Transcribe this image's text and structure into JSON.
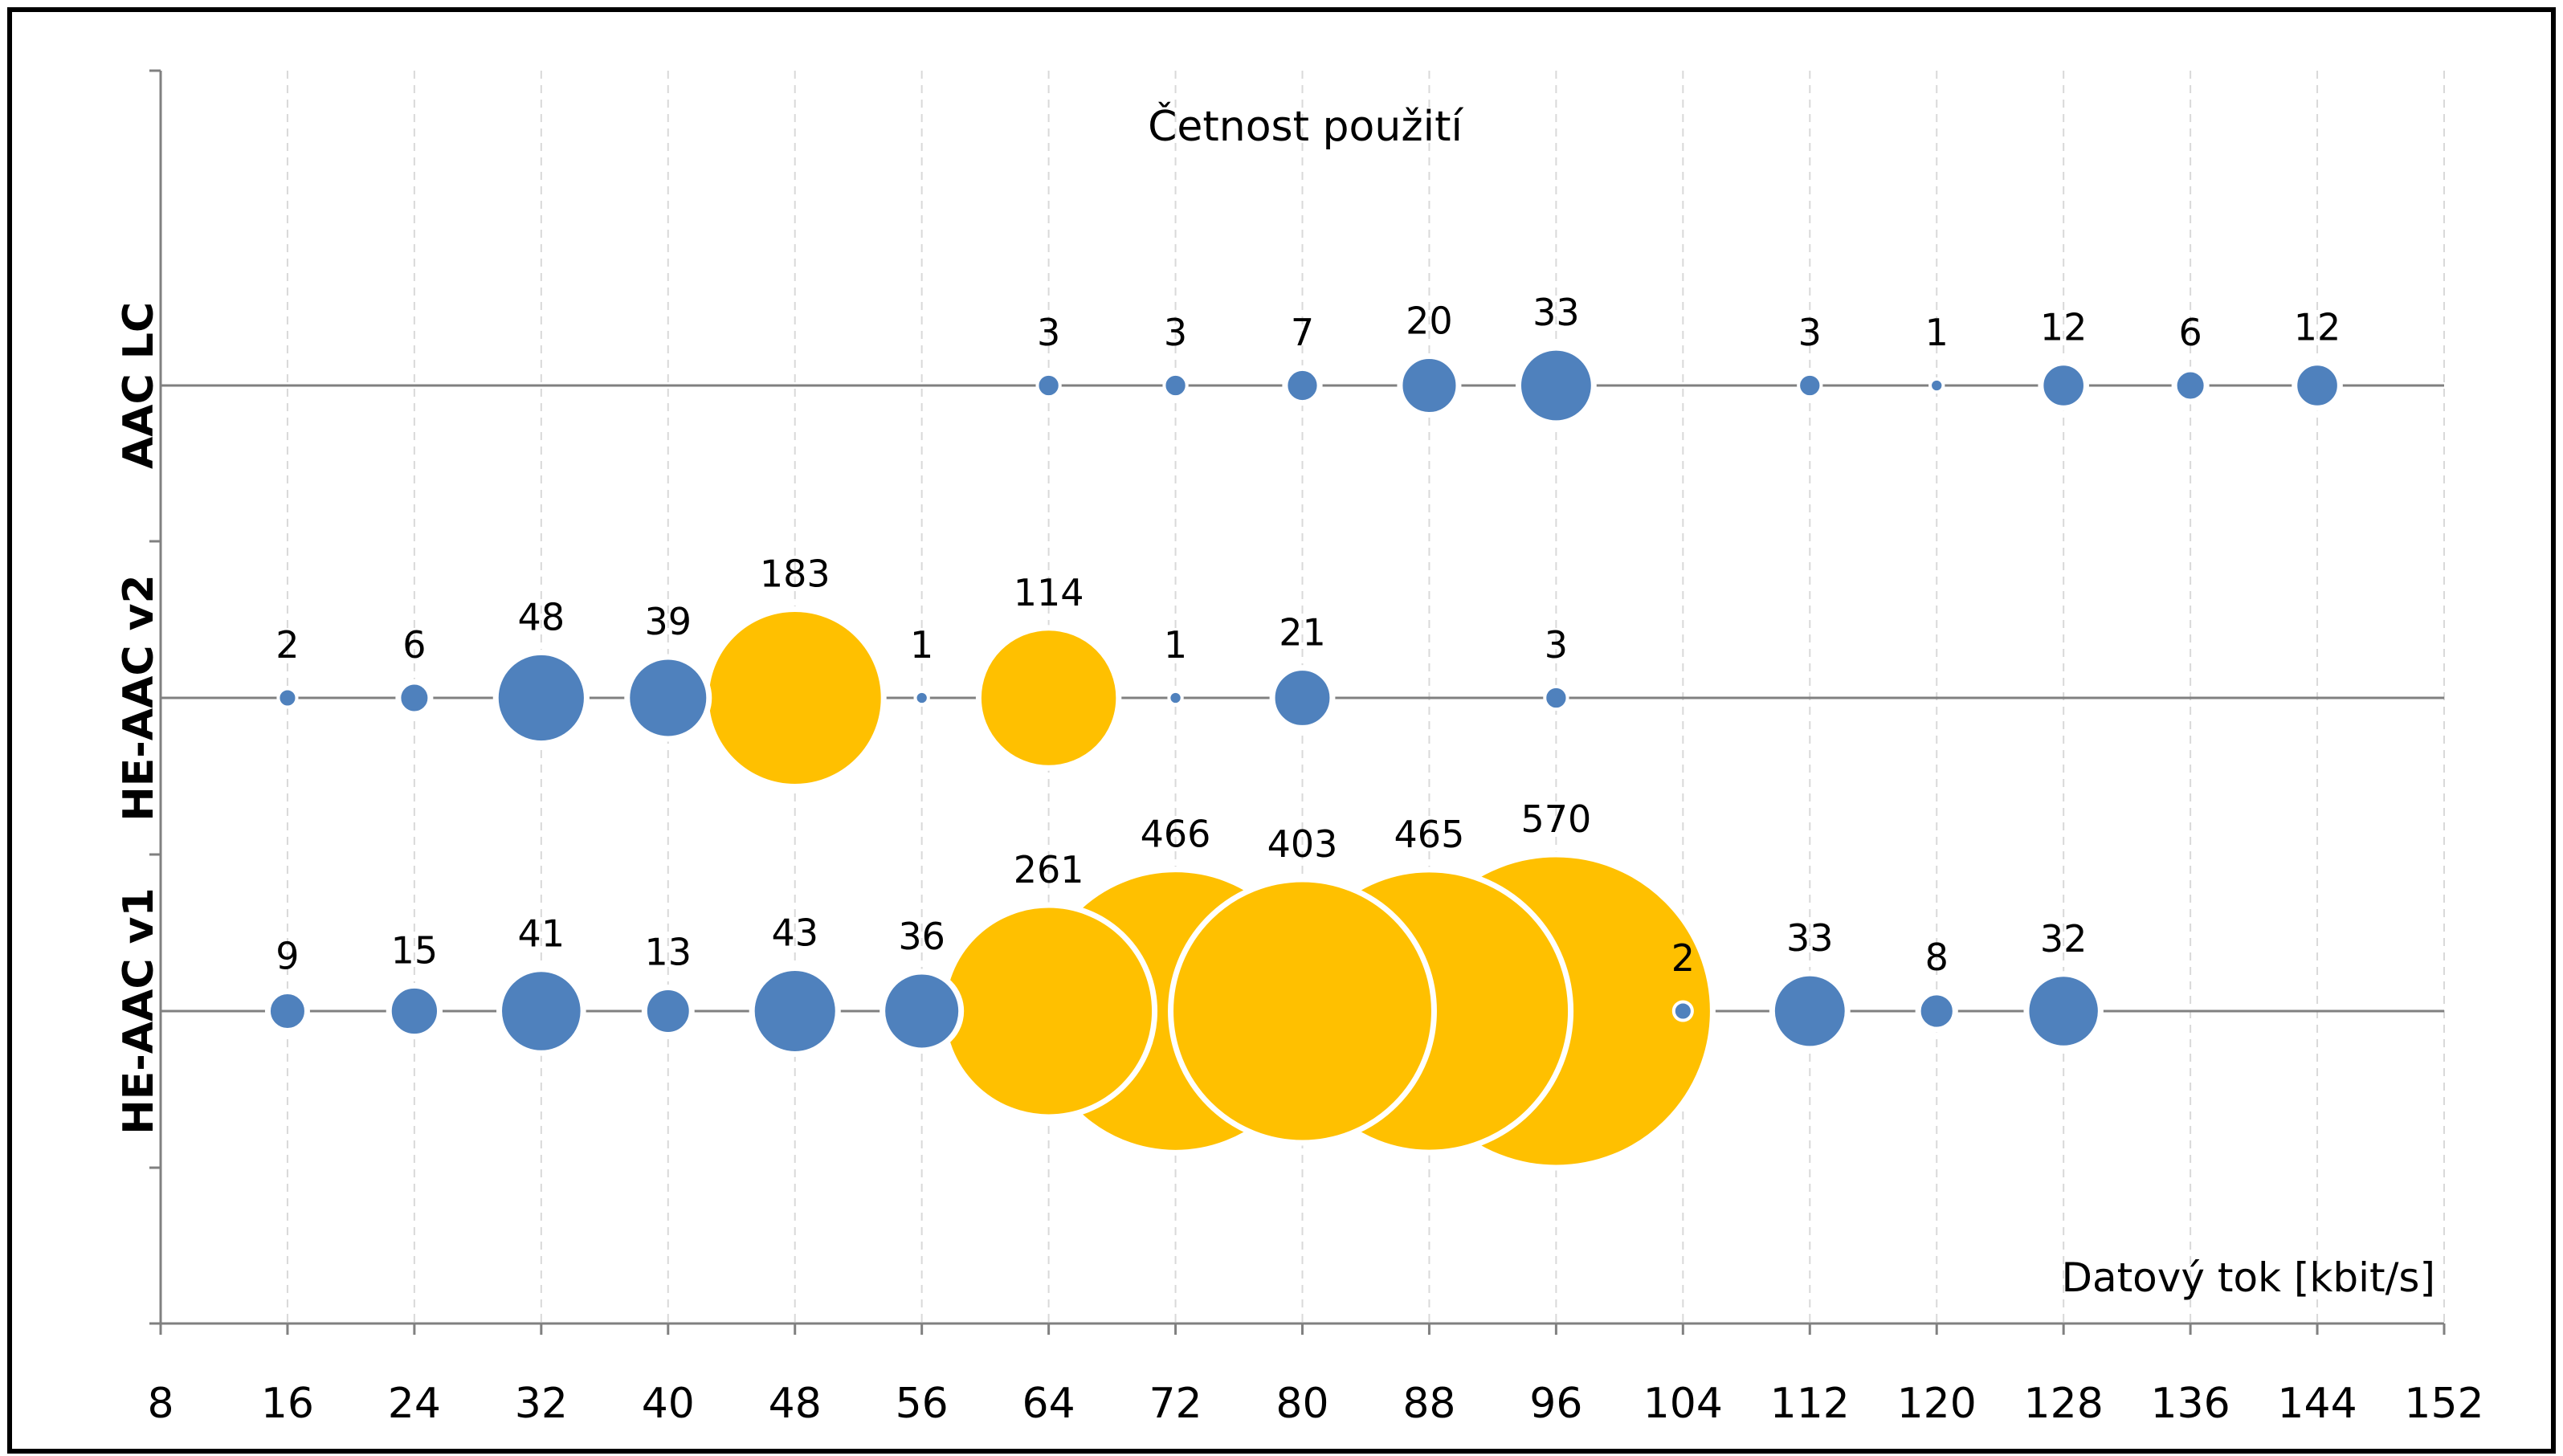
{
  "chart_data": {
    "type": "scatter",
    "title": "Četnost použití",
    "xlabel": "Datový tok [kbit/s]",
    "ylabel": "",
    "xlim": [
      8,
      152
    ],
    "xticks": [
      8,
      16,
      24,
      32,
      40,
      48,
      56,
      64,
      72,
      80,
      88,
      96,
      104,
      112,
      120,
      128,
      136,
      144,
      152
    ],
    "categories": [
      "AAC LC",
      "HE-AAC v2",
      "HE-AAC v1"
    ],
    "bubble_size_metric": "count",
    "grid": "vertical dashed",
    "colors": {
      "normal": "#4f81bd",
      "highlight": "#ffc000",
      "axis": "#808080",
      "grid": "#d9d9d9",
      "frame": "#000000"
    },
    "series": [
      {
        "category": "AAC LC",
        "points": [
          {
            "x": 64,
            "count": 3,
            "highlight": false
          },
          {
            "x": 72,
            "count": 3,
            "highlight": false
          },
          {
            "x": 80,
            "count": 7,
            "highlight": false
          },
          {
            "x": 88,
            "count": 20,
            "highlight": false
          },
          {
            "x": 96,
            "count": 33,
            "highlight": false
          },
          {
            "x": 112,
            "count": 3,
            "highlight": false
          },
          {
            "x": 120,
            "count": 1,
            "highlight": false
          },
          {
            "x": 128,
            "count": 12,
            "highlight": false
          },
          {
            "x": 136,
            "count": 6,
            "highlight": false
          },
          {
            "x": 144,
            "count": 12,
            "highlight": false
          }
        ]
      },
      {
        "category": "HE-AAC v2",
        "points": [
          {
            "x": 16,
            "count": 2,
            "highlight": false
          },
          {
            "x": 24,
            "count": 6,
            "highlight": false
          },
          {
            "x": 32,
            "count": 48,
            "highlight": false
          },
          {
            "x": 40,
            "count": 39,
            "highlight": false
          },
          {
            "x": 48,
            "count": 183,
            "highlight": true
          },
          {
            "x": 56,
            "count": 1,
            "highlight": false
          },
          {
            "x": 64,
            "count": 114,
            "highlight": true
          },
          {
            "x": 72,
            "count": 1,
            "highlight": false
          },
          {
            "x": 80,
            "count": 21,
            "highlight": false
          },
          {
            "x": 96,
            "count": 3,
            "highlight": false
          }
        ]
      },
      {
        "category": "HE-AAC v1",
        "points": [
          {
            "x": 16,
            "count": 9,
            "highlight": false
          },
          {
            "x": 24,
            "count": 15,
            "highlight": false
          },
          {
            "x": 32,
            "count": 41,
            "highlight": false
          },
          {
            "x": 40,
            "count": 13,
            "highlight": false
          },
          {
            "x": 48,
            "count": 43,
            "highlight": false
          },
          {
            "x": 56,
            "count": 36,
            "highlight": false
          },
          {
            "x": 64,
            "count": 261,
            "highlight": true
          },
          {
            "x": 72,
            "count": 466,
            "highlight": true
          },
          {
            "x": 80,
            "count": 403,
            "highlight": true
          },
          {
            "x": 88,
            "count": 465,
            "highlight": true
          },
          {
            "x": 96,
            "count": 570,
            "highlight": true
          },
          {
            "x": 104,
            "count": 2,
            "highlight": false
          },
          {
            "x": 112,
            "count": 33,
            "highlight": false
          },
          {
            "x": 120,
            "count": 8,
            "highlight": false
          },
          {
            "x": 128,
            "count": 32,
            "highlight": false
          }
        ]
      }
    ]
  }
}
